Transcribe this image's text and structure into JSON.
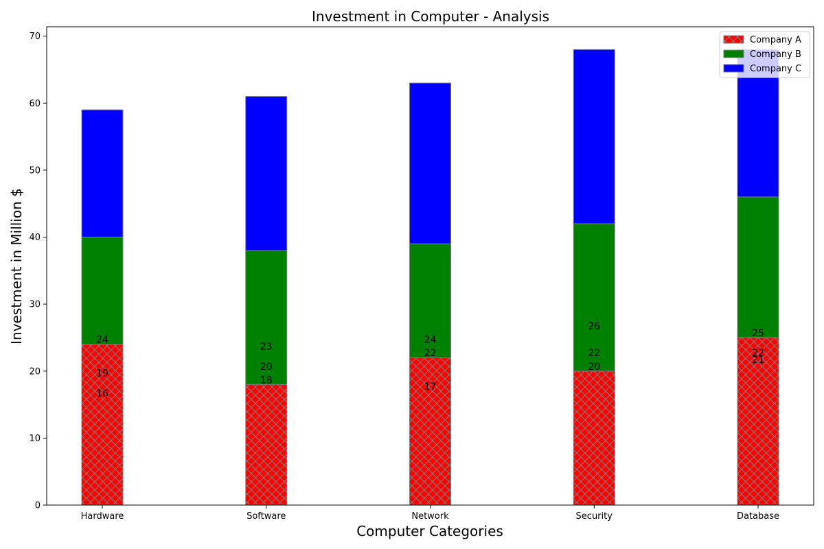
{
  "chart_data": {
    "type": "bar",
    "stacked": true,
    "title": "Investment in Computer - Analysis",
    "xlabel": "Computer Categories",
    "ylabel": "Investment in Million $",
    "categories": [
      "Hardware",
      "Software",
      "Network",
      "Security",
      "Database"
    ],
    "series": [
      {
        "name": "Company A",
        "values": [
          24,
          18,
          22,
          20,
          25
        ],
        "color": "#ff0000",
        "hatch": "cross"
      },
      {
        "name": "Company B",
        "values": [
          16,
          20,
          17,
          22,
          21
        ],
        "color": "#008000"
      },
      {
        "name": "Company C",
        "values": [
          19,
          23,
          24,
          26,
          22
        ],
        "color": "#0000ff"
      }
    ],
    "data_labels": [
      [
        "24",
        "19",
        "16"
      ],
      [
        "23",
        "20",
        "18"
      ],
      [
        "24",
        "22",
        "17"
      ],
      [
        "26",
        "22",
        "20"
      ],
      [
        "25",
        "22",
        "21"
      ]
    ],
    "ylim": [
      0,
      71.4
    ],
    "yticks": [
      "0",
      "10",
      "20",
      "30",
      "40",
      "50",
      "60",
      "70"
    ],
    "grid": false,
    "legend_position": "top-right",
    "bar_edge_color": "#808080"
  }
}
